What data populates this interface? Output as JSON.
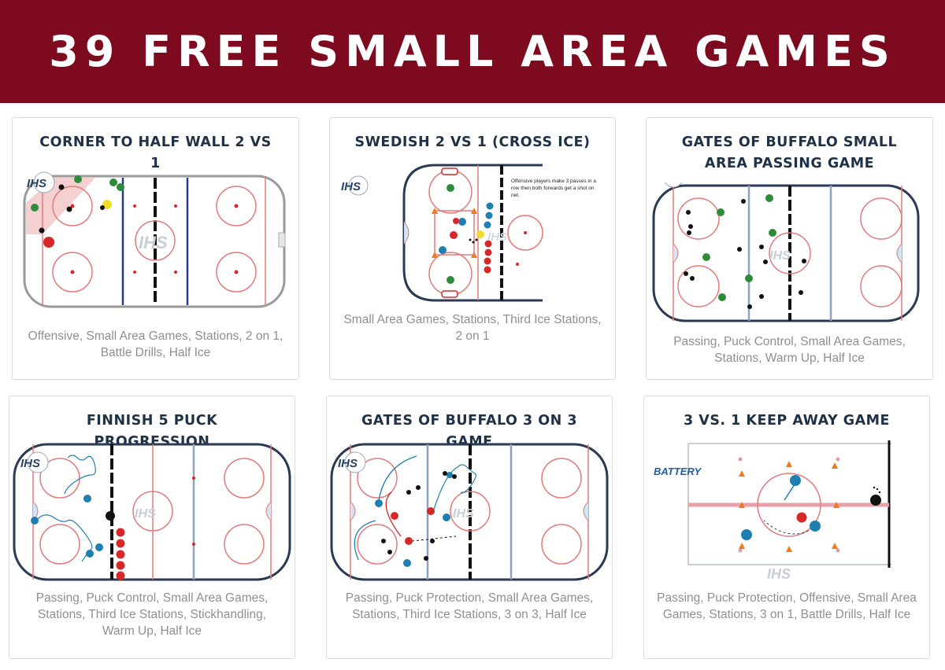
{
  "header": {
    "title": "39 FREE SMALL AREA GAMES"
  },
  "watermark": "IHS",
  "games": [
    {
      "title": "CORNER TO HALF WALL 2 VS 1",
      "tags": "Offensive, Small Area Games, Stations, 2 on 1, Battle Drills, Half Ice"
    },
    {
      "title": "SWEDISH 2 VS 1 (CROSS ICE)",
      "tags": "Small Area Games, Stations, Third Ice Stations, 2 on 1",
      "note": "Offensive players make 3 passes in a row then both forwards get a shot on net."
    },
    {
      "title": "GATES OF BUFFALO SMALL AREA PASSING GAME",
      "tags": "Passing, Puck Control, Small Area Games, Stations, Warm Up, Half Ice"
    },
    {
      "title": "FINNISH 5 PUCK PROGRESSION",
      "tags": "Passing, Puck Control, Small Area Games, Stations, Third Ice Stations, Stickhandling, Warm Up, Half Ice"
    },
    {
      "title": "GATES OF BUFFALO 3 ON 3 GAME",
      "tags": "Passing, Puck Protection, Small Area Games, Stations, Third Ice Stations, 3 on 3, Half Ice"
    },
    {
      "title": "3 VS. 1 KEEP AWAY GAME",
      "tags": "Passing, Puck Protection, Offensive, Small Area Games, Stations, 3 on 1, Battle Drills, Half Ice",
      "logo": "BATTERY"
    }
  ]
}
